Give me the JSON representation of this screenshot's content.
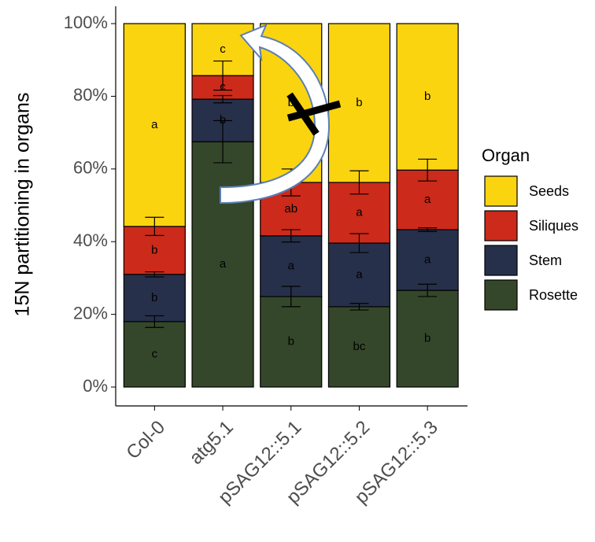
{
  "chart_data": {
    "type": "stacked_bar",
    "y_label": "15N partitioning in organs",
    "legend_title": "Organ",
    "categories": [
      "Col-0",
      "atg5.1",
      "pSAG12::5.1",
      "pSAG12::5.2",
      "pSAG12::5.3"
    ],
    "series": [
      {
        "name": "Rosette",
        "color": "#34472a",
        "values": [
          18.0,
          67.5,
          24.9,
          22.1,
          26.6
        ],
        "errors": [
          1.6,
          5.8,
          2.8,
          0.9,
          1.7
        ],
        "labels": [
          "c",
          "a",
          "b",
          "bc",
          "b"
        ]
      },
      {
        "name": "Stem",
        "color": "#27304a",
        "values": [
          13.0,
          11.7,
          16.7,
          17.5,
          16.7
        ],
        "errors": [
          0.7,
          1.0,
          1.7,
          2.6,
          0.5
        ],
        "labels": [
          "b",
          "b",
          "a",
          "a",
          "a"
        ]
      },
      {
        "name": "Siliques",
        "color": "#cc2a1a",
        "values": [
          13.2,
          6.5,
          14.7,
          16.7,
          16.4
        ],
        "errors": [
          2.5,
          4.0,
          3.7,
          3.2,
          3.0
        ],
        "labels": [
          "b",
          "c",
          "ab",
          "a",
          "a"
        ]
      },
      {
        "name": "Seeds",
        "color": "#fbd410",
        "values": [
          55.8,
          14.3,
          43.7,
          43.7,
          40.3
        ],
        "labels": [
          "a",
          "c",
          "b",
          "b",
          "b"
        ]
      }
    ],
    "ylim": [
      0,
      100
    ],
    "yticks": [
      {
        "value": 0,
        "label": "0%"
      },
      {
        "value": 20,
        "label": "20%"
      },
      {
        "value": 40,
        "label": "40%"
      },
      {
        "value": 60,
        "label": "60%"
      },
      {
        "value": 80,
        "label": "80%"
      },
      {
        "value": 100,
        "label": "100%"
      }
    ],
    "legend": "right"
  }
}
